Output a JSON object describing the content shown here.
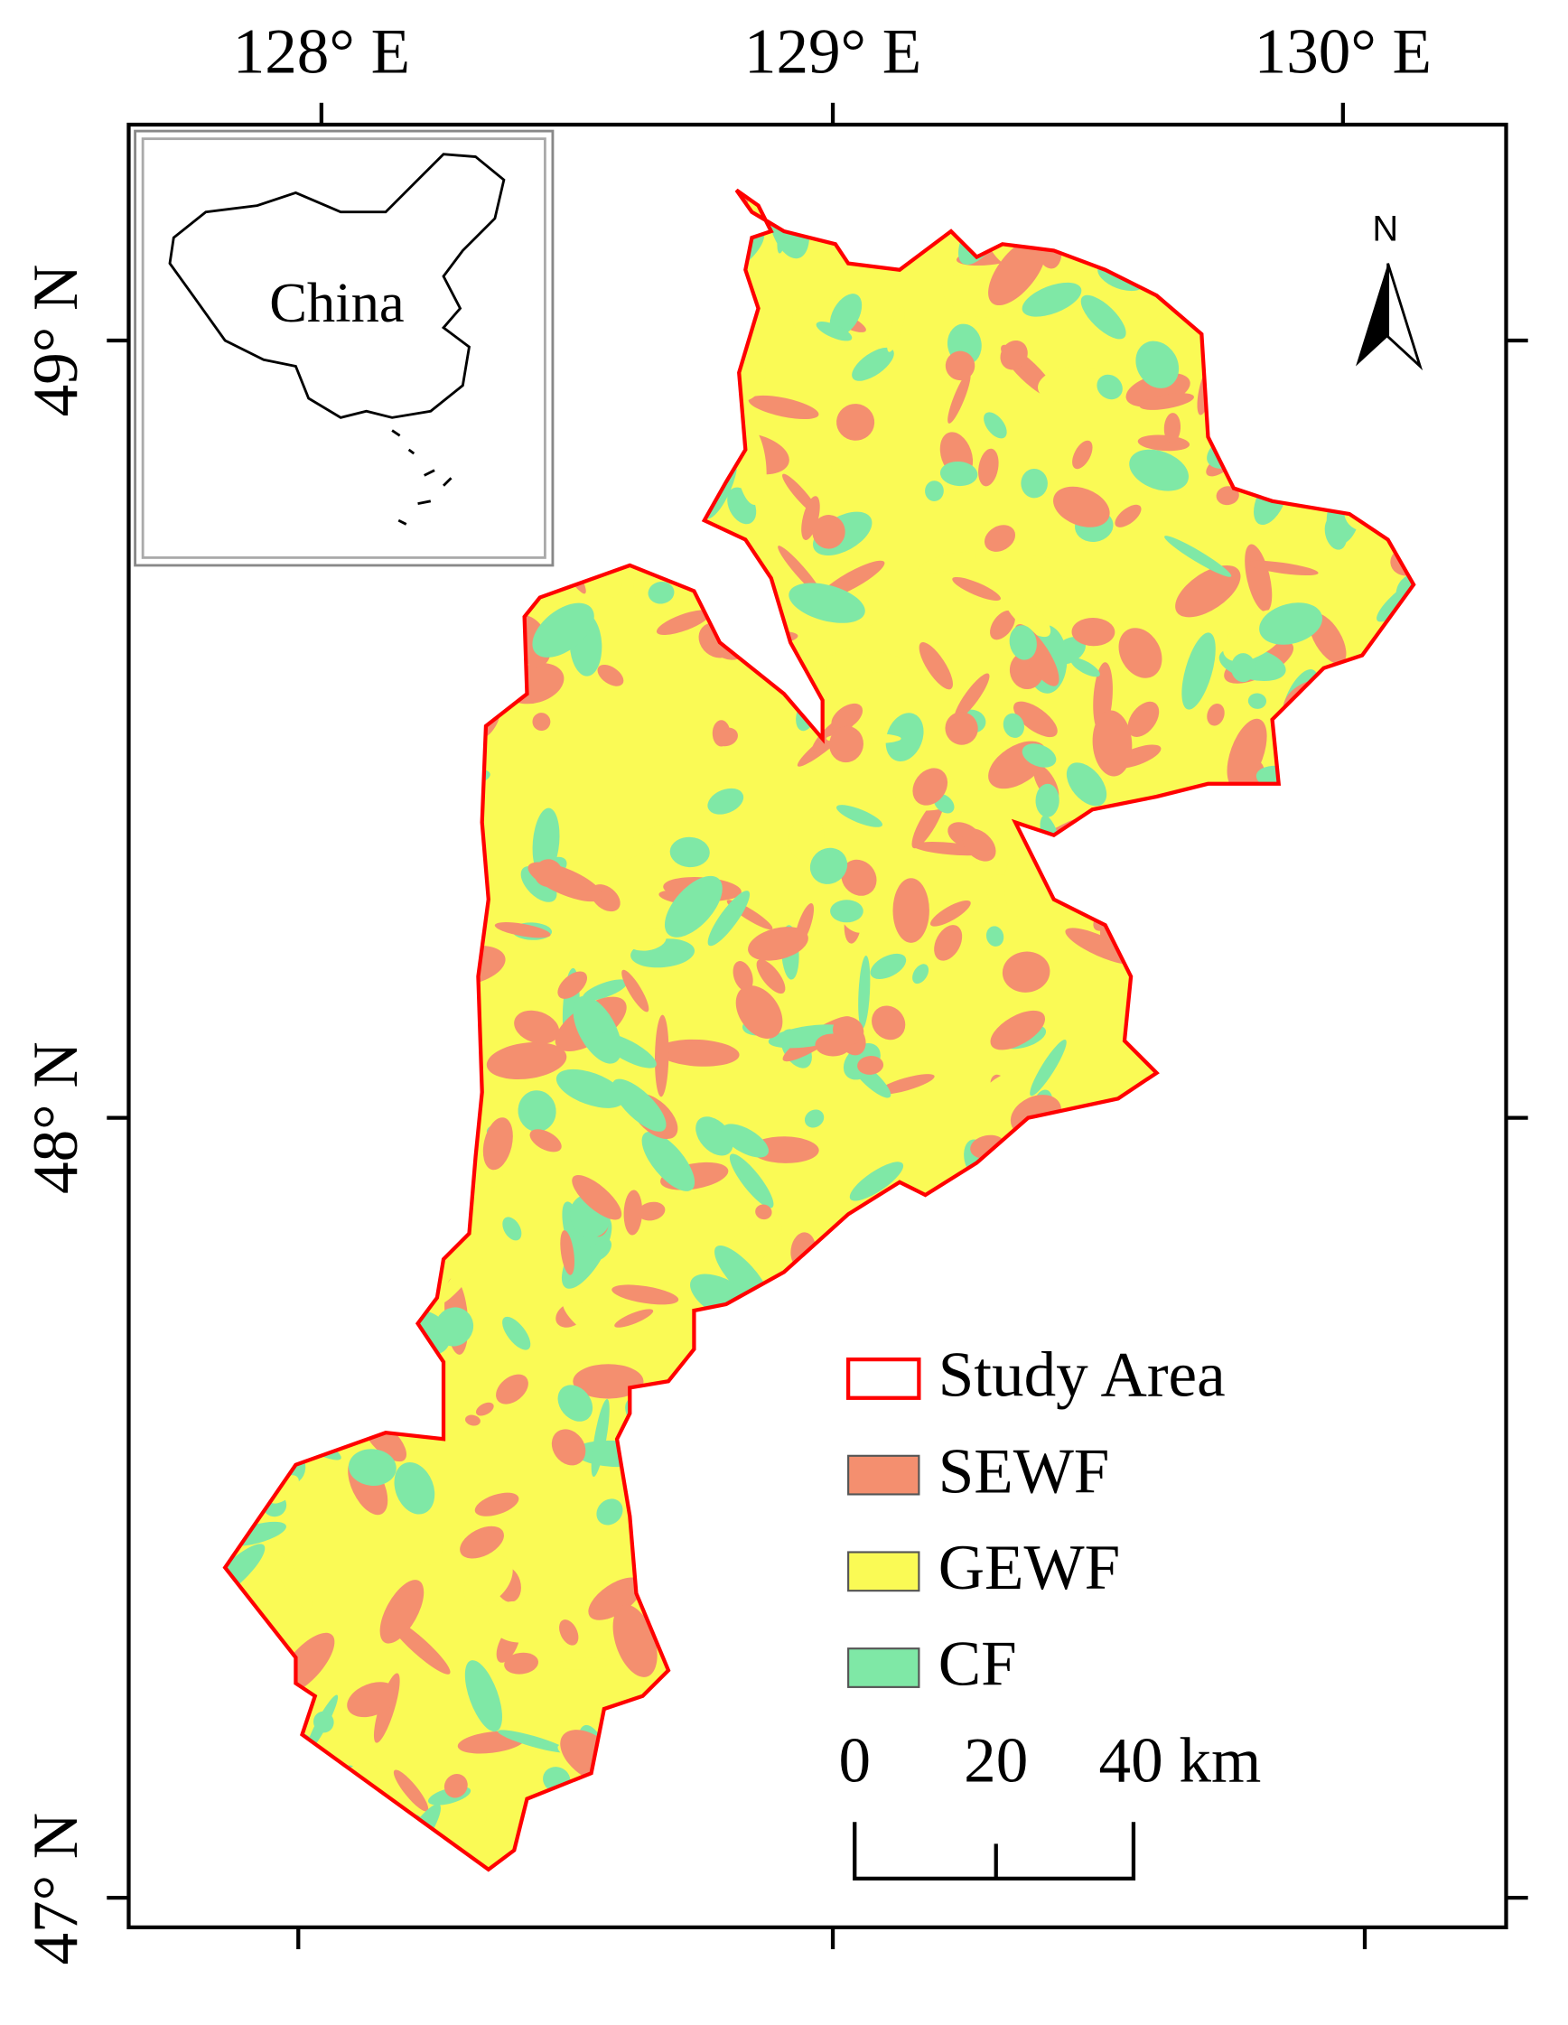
{
  "map": {
    "top_labels": [
      "128° E",
      "129° E",
      "130° E"
    ],
    "left_labels": [
      "49° N",
      "48° N",
      "47° N"
    ],
    "inset_label": "China",
    "north_label": "N",
    "legend": [
      {
        "name": "Study Area",
        "color": "#ff0000"
      },
      {
        "name": "SEWF",
        "color": "#f48f6f"
      },
      {
        "name": "GEWF",
        "color": "#fafa55"
      },
      {
        "name": "CF",
        "color": "#7fe8a6"
      }
    ],
    "scale_labels": [
      "0",
      "20",
      "40 km"
    ]
  }
}
